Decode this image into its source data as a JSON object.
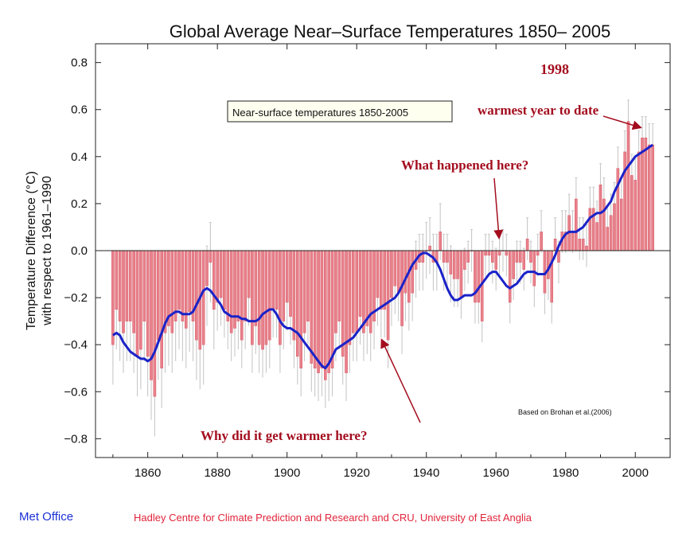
{
  "chart_data": {
    "type": "bar",
    "title": "Global Average Near–Surface Temperatures 1850– 2005",
    "ylabel_line1": "Temperature Difference (°C)",
    "ylabel_line2": "with respect to 1961–1990",
    "xlabel": "",
    "xlim": [
      1845,
      2010
    ],
    "ylim": [
      -0.88,
      0.88
    ],
    "x_ticks": [
      1860,
      1880,
      1900,
      1920,
      1940,
      1960,
      1980,
      2000
    ],
    "x_tick_labels": [
      "1860",
      "1880",
      "1900",
      "1920",
      "1940",
      "1960",
      "1980",
      "2000"
    ],
    "y_ticks": [
      -0.8,
      -0.6,
      -0.4,
      -0.2,
      0.0,
      0.2,
      0.4,
      0.6,
      0.8
    ],
    "y_tick_labels": [
      "−0.8",
      "−0.6",
      "−0.4",
      "−0.2",
      "0.0",
      "0.2",
      "0.4",
      "0.6",
      "0.8"
    ],
    "grid": false,
    "years": [
      1850,
      1851,
      1852,
      1853,
      1854,
      1855,
      1856,
      1857,
      1858,
      1859,
      1860,
      1861,
      1862,
      1863,
      1864,
      1865,
      1866,
      1867,
      1868,
      1869,
      1870,
      1871,
      1872,
      1873,
      1874,
      1875,
      1876,
      1877,
      1878,
      1879,
      1880,
      1881,
      1882,
      1883,
      1884,
      1885,
      1886,
      1887,
      1888,
      1889,
      1890,
      1891,
      1892,
      1893,
      1894,
      1895,
      1896,
      1897,
      1898,
      1899,
      1900,
      1901,
      1902,
      1903,
      1904,
      1905,
      1906,
      1907,
      1908,
      1909,
      1910,
      1911,
      1912,
      1913,
      1914,
      1915,
      1916,
      1917,
      1918,
      1919,
      1920,
      1921,
      1922,
      1923,
      1924,
      1925,
      1926,
      1927,
      1928,
      1929,
      1930,
      1931,
      1932,
      1933,
      1934,
      1935,
      1936,
      1937,
      1938,
      1939,
      1940,
      1941,
      1942,
      1943,
      1944,
      1945,
      1946,
      1947,
      1948,
      1949,
      1950,
      1951,
      1952,
      1953,
      1954,
      1955,
      1956,
      1957,
      1958,
      1959,
      1960,
      1961,
      1962,
      1963,
      1964,
      1965,
      1966,
      1967,
      1968,
      1969,
      1970,
      1971,
      1972,
      1973,
      1974,
      1975,
      1976,
      1977,
      1978,
      1979,
      1980,
      1981,
      1982,
      1983,
      1984,
      1985,
      1986,
      1987,
      1988,
      1989,
      1990,
      1991,
      1992,
      1993,
      1994,
      1995,
      1996,
      1997,
      1998,
      1999,
      2000,
      2001,
      2002,
      2003,
      2004,
      2005
    ],
    "series": [
      {
        "name": "",
        "kind": "annual_bars",
        "color": "#e8808a",
        "values": [
          -0.4,
          -0.25,
          -0.3,
          -0.35,
          -0.3,
          -0.3,
          -0.35,
          -0.45,
          -0.42,
          -0.3,
          -0.45,
          -0.55,
          -0.62,
          -0.38,
          -0.5,
          -0.35,
          -0.32,
          -0.35,
          -0.3,
          -0.25,
          -0.3,
          -0.33,
          -0.26,
          -0.3,
          -0.38,
          -0.42,
          -0.4,
          -0.15,
          -0.05,
          -0.25,
          -0.22,
          -0.2,
          -0.25,
          -0.3,
          -0.35,
          -0.33,
          -0.3,
          -0.38,
          -0.3,
          -0.2,
          -0.4,
          -0.32,
          -0.4,
          -0.42,
          -0.4,
          -0.38,
          -0.25,
          -0.25,
          -0.4,
          -0.3,
          -0.22,
          -0.28,
          -0.38,
          -0.45,
          -0.5,
          -0.35,
          -0.3,
          -0.48,
          -0.5,
          -0.52,
          -0.5,
          -0.55,
          -0.52,
          -0.5,
          -0.35,
          -0.3,
          -0.45,
          -0.52,
          -0.4,
          -0.35,
          -0.35,
          -0.28,
          -0.35,
          -0.32,
          -0.35,
          -0.3,
          -0.2,
          -0.25,
          -0.25,
          -0.38,
          -0.2,
          -0.15,
          -0.18,
          -0.32,
          -0.18,
          -0.22,
          -0.18,
          -0.08,
          -0.05,
          -0.05,
          0.0,
          0.02,
          -0.05,
          -0.05,
          0.08,
          -0.05,
          -0.05,
          -0.1,
          -0.12,
          -0.12,
          -0.2,
          -0.08,
          -0.05,
          0.0,
          -0.22,
          -0.22,
          -0.3,
          -0.02,
          -0.02,
          -0.05,
          -0.08,
          -0.02,
          0.0,
          -0.02,
          -0.22,
          -0.12,
          -0.05,
          -0.05,
          -0.08,
          0.05,
          -0.05,
          -0.15,
          -0.02,
          0.08,
          -0.18,
          -0.12,
          -0.22,
          0.05,
          -0.05,
          0.08,
          0.08,
          0.15,
          0.08,
          0.22,
          0.05,
          0.05,
          0.02,
          0.18,
          0.18,
          0.12,
          0.28,
          0.22,
          0.1,
          0.15,
          0.2,
          0.35,
          0.22,
          0.42,
          0.55,
          0.32,
          0.3,
          0.42,
          0.48,
          0.48,
          0.45,
          0.45
        ]
      },
      {
        "name": "",
        "kind": "smoothed_curve",
        "color": "#1a22c8",
        "values": [
          -0.36,
          -0.35,
          -0.36,
          -0.39,
          -0.41,
          -0.43,
          -0.44,
          -0.45,
          -0.46,
          -0.46,
          -0.47,
          -0.46,
          -0.43,
          -0.39,
          -0.35,
          -0.31,
          -0.28,
          -0.27,
          -0.26,
          -0.26,
          -0.27,
          -0.27,
          -0.27,
          -0.26,
          -0.23,
          -0.2,
          -0.17,
          -0.16,
          -0.17,
          -0.19,
          -0.21,
          -0.23,
          -0.26,
          -0.27,
          -0.28,
          -0.28,
          -0.28,
          -0.29,
          -0.29,
          -0.3,
          -0.3,
          -0.3,
          -0.29,
          -0.27,
          -0.26,
          -0.25,
          -0.25,
          -0.27,
          -0.3,
          -0.32,
          -0.33,
          -0.33,
          -0.34,
          -0.35,
          -0.37,
          -0.39,
          -0.41,
          -0.43,
          -0.45,
          -0.47,
          -0.49,
          -0.5,
          -0.48,
          -0.45,
          -0.42,
          -0.41,
          -0.4,
          -0.39,
          -0.38,
          -0.37,
          -0.35,
          -0.33,
          -0.31,
          -0.29,
          -0.27,
          -0.26,
          -0.25,
          -0.24,
          -0.23,
          -0.22,
          -0.21,
          -0.2,
          -0.18,
          -0.15,
          -0.12,
          -0.09,
          -0.06,
          -0.04,
          -0.02,
          -0.01,
          -0.01,
          -0.02,
          -0.03,
          -0.05,
          -0.08,
          -0.12,
          -0.16,
          -0.19,
          -0.21,
          -0.21,
          -0.2,
          -0.19,
          -0.19,
          -0.19,
          -0.18,
          -0.16,
          -0.14,
          -0.12,
          -0.1,
          -0.09,
          -0.09,
          -0.11,
          -0.13,
          -0.15,
          -0.16,
          -0.15,
          -0.14,
          -0.12,
          -0.1,
          -0.09,
          -0.09,
          -0.09,
          -0.1,
          -0.1,
          -0.1,
          -0.08,
          -0.05,
          -0.02,
          0.02,
          0.05,
          0.07,
          0.08,
          0.08,
          0.08,
          0.09,
          0.1,
          0.12,
          0.14,
          0.15,
          0.16,
          0.16,
          0.17,
          0.19,
          0.21,
          0.25,
          0.28,
          0.31,
          0.34,
          0.36,
          0.38,
          0.4,
          0.41,
          0.42,
          0.43,
          0.44,
          0.45
        ]
      }
    ],
    "annotations": {
      "legend_box": "Near-surface temperatures 1850-2005",
      "year_1998": "1998",
      "warmest": "warmest year to date",
      "what_happened": "What happened here?",
      "why_warmer": "Why did it get warmer here?",
      "citation": "Based on Brohan et al.(2006)"
    }
  },
  "footer": {
    "left": "Met Office",
    "right": "Hadley Centre for Climate Prediction and Research and CRU, University of East Anglia"
  },
  "colors": {
    "bar_fill": "#e8808a",
    "bar_stroke": "#d14b5a",
    "error_bar": "#c8c8c8",
    "curve": "#1a22c8",
    "annotation_text": "#a30d1e",
    "arrow": "#a30d1e",
    "footer_left": "#1b2fd6",
    "footer_right": "#e0243a"
  }
}
